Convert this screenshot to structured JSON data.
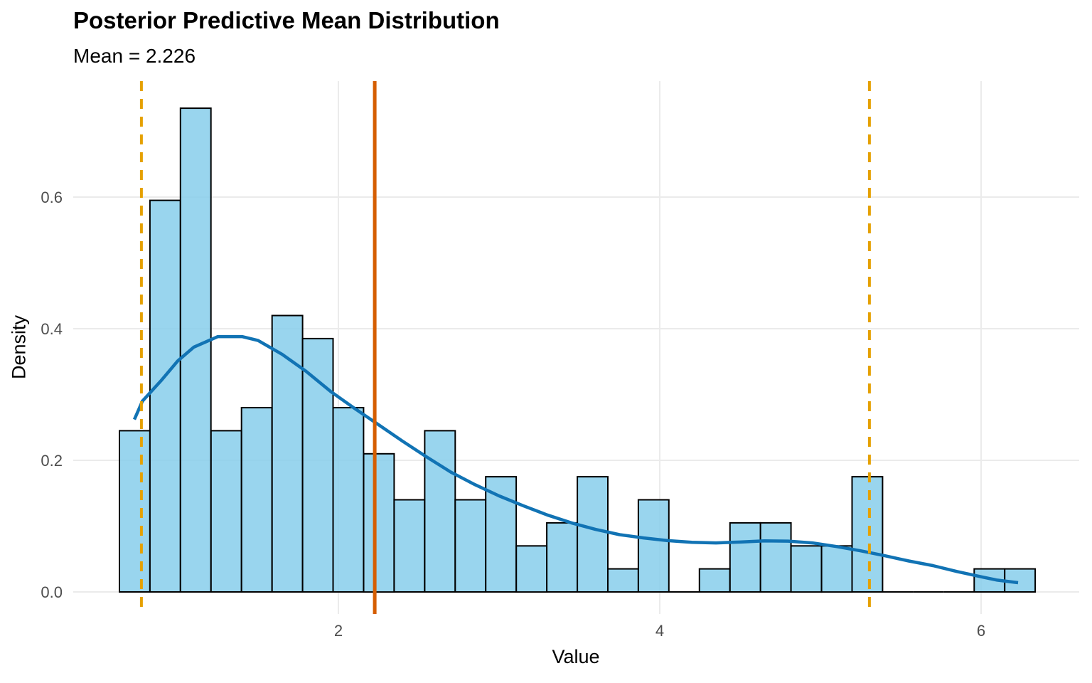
{
  "chart_data": {
    "type": "bar",
    "subtype": "histogram_with_density_overlay",
    "title": "Posterior Predictive Mean Distribution",
    "subtitle": "Mean = 2.226",
    "xlabel": "Value",
    "ylabel": "Density",
    "mean_value": 2.226,
    "x_ticks": [
      {
        "value": 2,
        "label": "2"
      },
      {
        "value": 4,
        "label": "4"
      },
      {
        "value": 6,
        "label": "6"
      }
    ],
    "y_ticks": [
      {
        "value": 0.0,
        "label": "0.0"
      },
      {
        "value": 0.2,
        "label": "0.2"
      },
      {
        "value": 0.4,
        "label": "0.4"
      },
      {
        "value": 0.6,
        "label": "0.6"
      }
    ],
    "xlim": [
      0.35,
      6.61
    ],
    "ylim": [
      -0.034,
      0.776
    ],
    "grid": "major-only",
    "legend": "none",
    "histogram": {
      "bin_start": 0.637,
      "bin_width": 0.19,
      "heights": [
        0.245,
        0.595,
        0.735,
        0.245,
        0.28,
        0.42,
        0.385,
        0.28,
        0.21,
        0.14,
        0.245,
        0.14,
        0.175,
        0.07,
        0.105,
        0.175,
        0.035,
        0.14,
        0,
        0.035,
        0.105,
        0.105,
        0.07,
        0.07,
        0.175,
        0,
        0,
        0,
        0.035,
        0.035
      ],
      "fill": "#87CEEB",
      "fill_opacity": 0.85,
      "border_color": "#000000"
    },
    "density_curve": {
      "color": "#1173B4",
      "points": [
        [
          0.73,
          0.262
        ],
        [
          0.78,
          0.29
        ],
        [
          0.9,
          0.322
        ],
        [
          1.0,
          0.351
        ],
        [
          1.1,
          0.372
        ],
        [
          1.25,
          0.388
        ],
        [
          1.4,
          0.388
        ],
        [
          1.5,
          0.382
        ],
        [
          1.65,
          0.361
        ],
        [
          1.8,
          0.335
        ],
        [
          1.95,
          0.305
        ],
        [
          2.1,
          0.279
        ],
        [
          2.25,
          0.254
        ],
        [
          2.4,
          0.229
        ],
        [
          2.55,
          0.205
        ],
        [
          2.7,
          0.182
        ],
        [
          2.85,
          0.163
        ],
        [
          3.0,
          0.146
        ],
        [
          3.15,
          0.131
        ],
        [
          3.3,
          0.117
        ],
        [
          3.45,
          0.105
        ],
        [
          3.6,
          0.095
        ],
        [
          3.75,
          0.087
        ],
        [
          3.9,
          0.082
        ],
        [
          4.05,
          0.078
        ],
        [
          4.2,
          0.0755
        ],
        [
          4.35,
          0.0745
        ],
        [
          4.5,
          0.0758
        ],
        [
          4.65,
          0.0775
        ],
        [
          4.8,
          0.0772
        ],
        [
          4.95,
          0.0745
        ],
        [
          5.1,
          0.069
        ],
        [
          5.25,
          0.0625
        ],
        [
          5.4,
          0.055
        ],
        [
          5.55,
          0.047
        ],
        [
          5.7,
          0.04
        ],
        [
          5.85,
          0.031
        ],
        [
          6.0,
          0.023
        ],
        [
          6.1,
          0.018
        ],
        [
          6.23,
          0.014
        ]
      ]
    },
    "vlines": [
      {
        "name": "mean-line",
        "value": 2.226,
        "style": "solid",
        "color": "#D55E00",
        "width": 5
      },
      {
        "name": "interval-lower-line",
        "value": 0.774,
        "style": "dashed",
        "color": "#E5A100",
        "width": 4
      },
      {
        "name": "interval-upper-line",
        "value": 5.305,
        "style": "dashed",
        "color": "#E5A100",
        "width": 4
      }
    ],
    "colors": {
      "grid": "#EBEBEB",
      "tick_label": "#4D4D4D",
      "text": "#000000",
      "background": "#FFFFFF"
    }
  }
}
